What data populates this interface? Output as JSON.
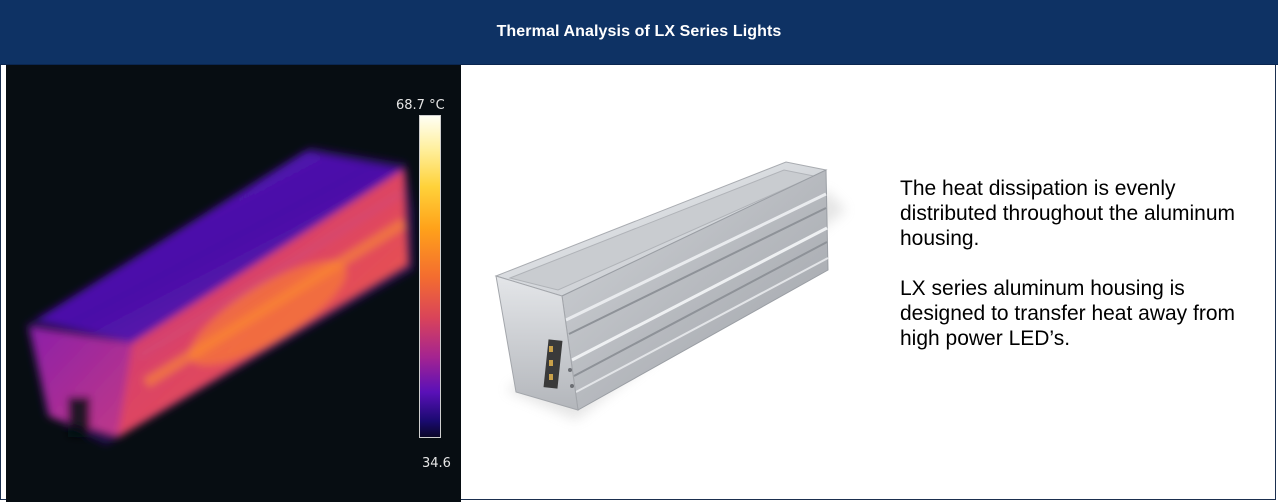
{
  "header": {
    "title": "Thermal Analysis of LX Series Lights",
    "background_color": "#0e3264",
    "text_color": "#ffffff"
  },
  "thermal_image": {
    "scale_max": "68.7 °C",
    "scale_min": "34.6",
    "palette": "ironbow",
    "background_color": "#070d12"
  },
  "product_image": {
    "subject": "LX series aluminum LED light housing"
  },
  "description": {
    "paragraph_1": "The heat dissipation is evenly distributed throughout the aluminum housing.",
    "paragraph_2": "LX series aluminum housing is designed to transfer heat away from high power LED’s."
  }
}
